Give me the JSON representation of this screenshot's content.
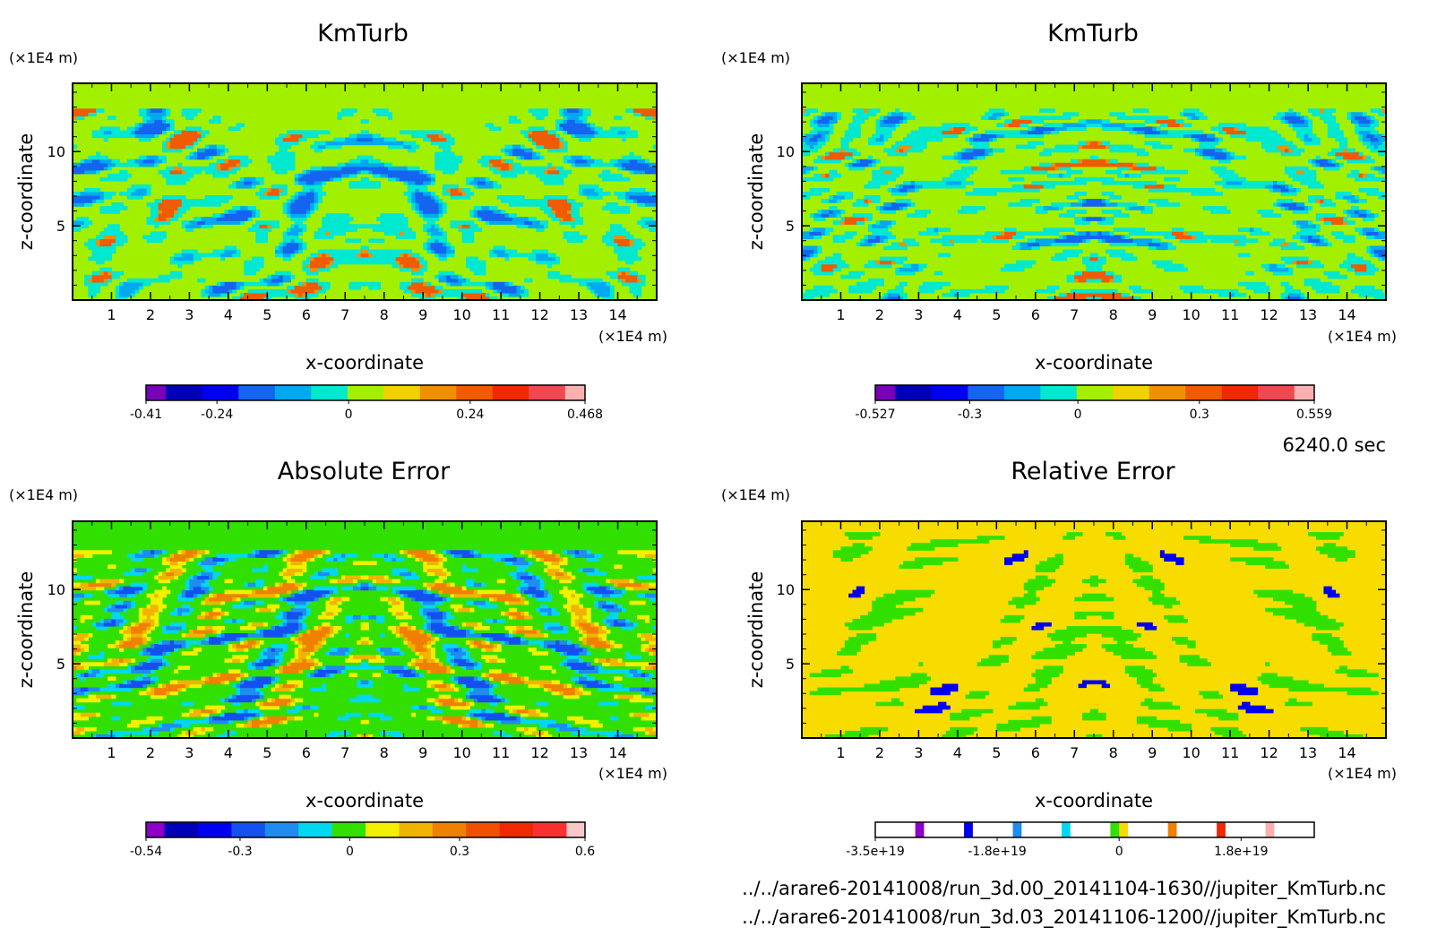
{
  "figure": {
    "time_label": "6240.0 sec",
    "files": [
      "../../arare6-20141008/run_3d.00_20141104-1630//jupiter_KmTurb.nc",
      "../../arare6-20141008/run_3d.03_20141106-1200//jupiter_KmTurb.nc"
    ]
  },
  "chart_data": [
    {
      "type": "heatmap",
      "title": "KmTurb",
      "xlabel": "x-coordinate",
      "ylabel": "z-coordinate",
      "x_unit": "(×1E4 m)",
      "z_unit": "(×1E4 m)",
      "xlim": [
        0,
        15
      ],
      "ylim": [
        0,
        14.6
      ],
      "x_ticks": [
        1,
        2,
        3,
        4,
        5,
        6,
        7,
        8,
        9,
        10,
        11,
        12,
        13,
        14
      ],
      "y_ticks": [
        5,
        10
      ],
      "background_level_color": "#a2f000",
      "colorbar": {
        "levels": [
          "#7a00b8",
          "#0000b8",
          "#0000f0",
          "#1464f0",
          "#00a8f0",
          "#00e8d0",
          "#a2f000",
          "#f0d200",
          "#f09000",
          "#f05a00",
          "#f02800",
          "#f04850",
          "#f8b0b0"
        ],
        "tick_labels": [
          "-0.41",
          "-0.24",
          "0",
          "0.24",
          "0.468"
        ]
      }
    },
    {
      "type": "heatmap",
      "title": "KmTurb",
      "xlabel": "x-coordinate",
      "ylabel": "z-coordinate",
      "x_unit": "(×1E4 m)",
      "z_unit": "(×1E4 m)",
      "xlim": [
        0,
        15
      ],
      "ylim": [
        0,
        14.6
      ],
      "x_ticks": [
        1,
        2,
        3,
        4,
        5,
        6,
        7,
        8,
        9,
        10,
        11,
        12,
        13,
        14
      ],
      "y_ticks": [
        5,
        10
      ],
      "background_level_color": "#a2f000",
      "colorbar": {
        "levels": [
          "#7a00b8",
          "#0000b8",
          "#0000f0",
          "#1464f0",
          "#00a8f0",
          "#00e8d0",
          "#a2f000",
          "#f0d200",
          "#f09000",
          "#f05a00",
          "#f02800",
          "#f04850",
          "#f8b0b0"
        ],
        "tick_labels": [
          "-0.527",
          "-0.3",
          "0",
          "0.3",
          "0.559"
        ]
      }
    },
    {
      "type": "heatmap",
      "title": "Absolute Error",
      "xlabel": "x-coordinate",
      "ylabel": "z-coordinate",
      "x_unit": "(×1E4 m)",
      "z_unit": "(×1E4 m)",
      "xlim": [
        0,
        15
      ],
      "ylim": [
        0,
        14.6
      ],
      "x_ticks": [
        1,
        2,
        3,
        4,
        5,
        6,
        7,
        8,
        9,
        10,
        11,
        12,
        13,
        14
      ],
      "y_ticks": [
        5,
        10
      ],
      "background_level_color": "#32e000",
      "colorbar": {
        "levels": [
          "#8c00c8",
          "#0000b8",
          "#0000f0",
          "#1450f0",
          "#1e8cf0",
          "#00d8f0",
          "#32e000",
          "#f0f000",
          "#f0b400",
          "#f08000",
          "#f05000",
          "#f02800",
          "#f83030",
          "#f8c8c8"
        ],
        "tick_labels": [
          "-0.54",
          "-0.3",
          "0",
          "0.3",
          "0.6"
        ]
      }
    },
    {
      "type": "heatmap",
      "title": "Relative Error",
      "xlabel": "x-coordinate",
      "ylabel": "z-coordinate",
      "x_unit": "(×1E4 m)",
      "z_unit": "(×1E4 m)",
      "xlim": [
        0,
        15
      ],
      "ylim": [
        0,
        14.6
      ],
      "x_ticks": [
        1,
        2,
        3,
        4,
        5,
        6,
        7,
        8,
        9,
        10,
        11,
        12,
        13,
        14
      ],
      "y_ticks": [
        5,
        10
      ],
      "background_level_color": "#f8dc00",
      "colorbar": {
        "levels": [
          "#ffffff",
          "#8c00c8",
          "#ffffff",
          "#0000f0",
          "#ffffff",
          "#1e8cf0",
          "#ffffff",
          "#00d8f0",
          "#ffffff",
          "#32e000",
          "#f8dc00",
          "#ffffff",
          "#f08000",
          "#ffffff",
          "#f02800",
          "#ffffff",
          "#f8b0b0",
          "#ffffff"
        ],
        "tick_labels": [
          "-3.5e+19",
          "-1.8e+19",
          "0",
          "1.8e+19"
        ]
      }
    }
  ]
}
